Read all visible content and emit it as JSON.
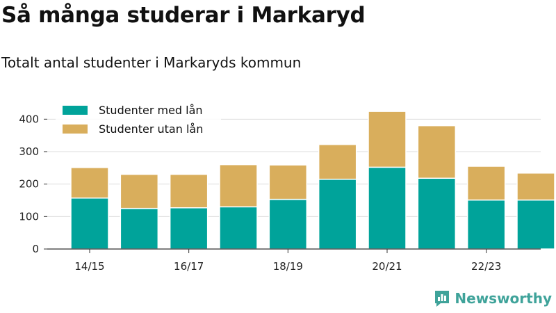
{
  "header": {
    "title": "Så många studerar i Markaryd",
    "subtitle": "Totalt antal studenter i Markaryds kommun"
  },
  "brand": {
    "name": "Newsworthy",
    "icon": "bar-chart-logo-icon",
    "color": "#3fa39a"
  },
  "chart_data": {
    "type": "bar",
    "stacked": true,
    "categories": [
      "14/15",
      "15/16",
      "16/17",
      "17/18",
      "18/19",
      "19/20",
      "20/21",
      "21/22",
      "22/23",
      "23/24"
    ],
    "x_tick_labels": [
      "14/15",
      "",
      "16/17",
      "",
      "18/19",
      "",
      "20/21",
      "",
      "22/23",
      ""
    ],
    "series": [
      {
        "name": "Studenter med lån",
        "color": "#00a39a",
        "values": [
          157,
          125,
          127,
          130,
          153,
          215,
          252,
          218,
          151,
          151
        ]
      },
      {
        "name": "Studenter utan lån",
        "color": "#d9ae5c",
        "values": [
          94,
          105,
          103,
          130,
          106,
          107,
          172,
          162,
          104,
          83
        ]
      }
    ],
    "ylim": [
      0,
      450
    ],
    "yticks": [
      0,
      100,
      200,
      300,
      400
    ],
    "grid": true,
    "legend_position": "top-left",
    "xlabel": "",
    "ylabel": ""
  }
}
